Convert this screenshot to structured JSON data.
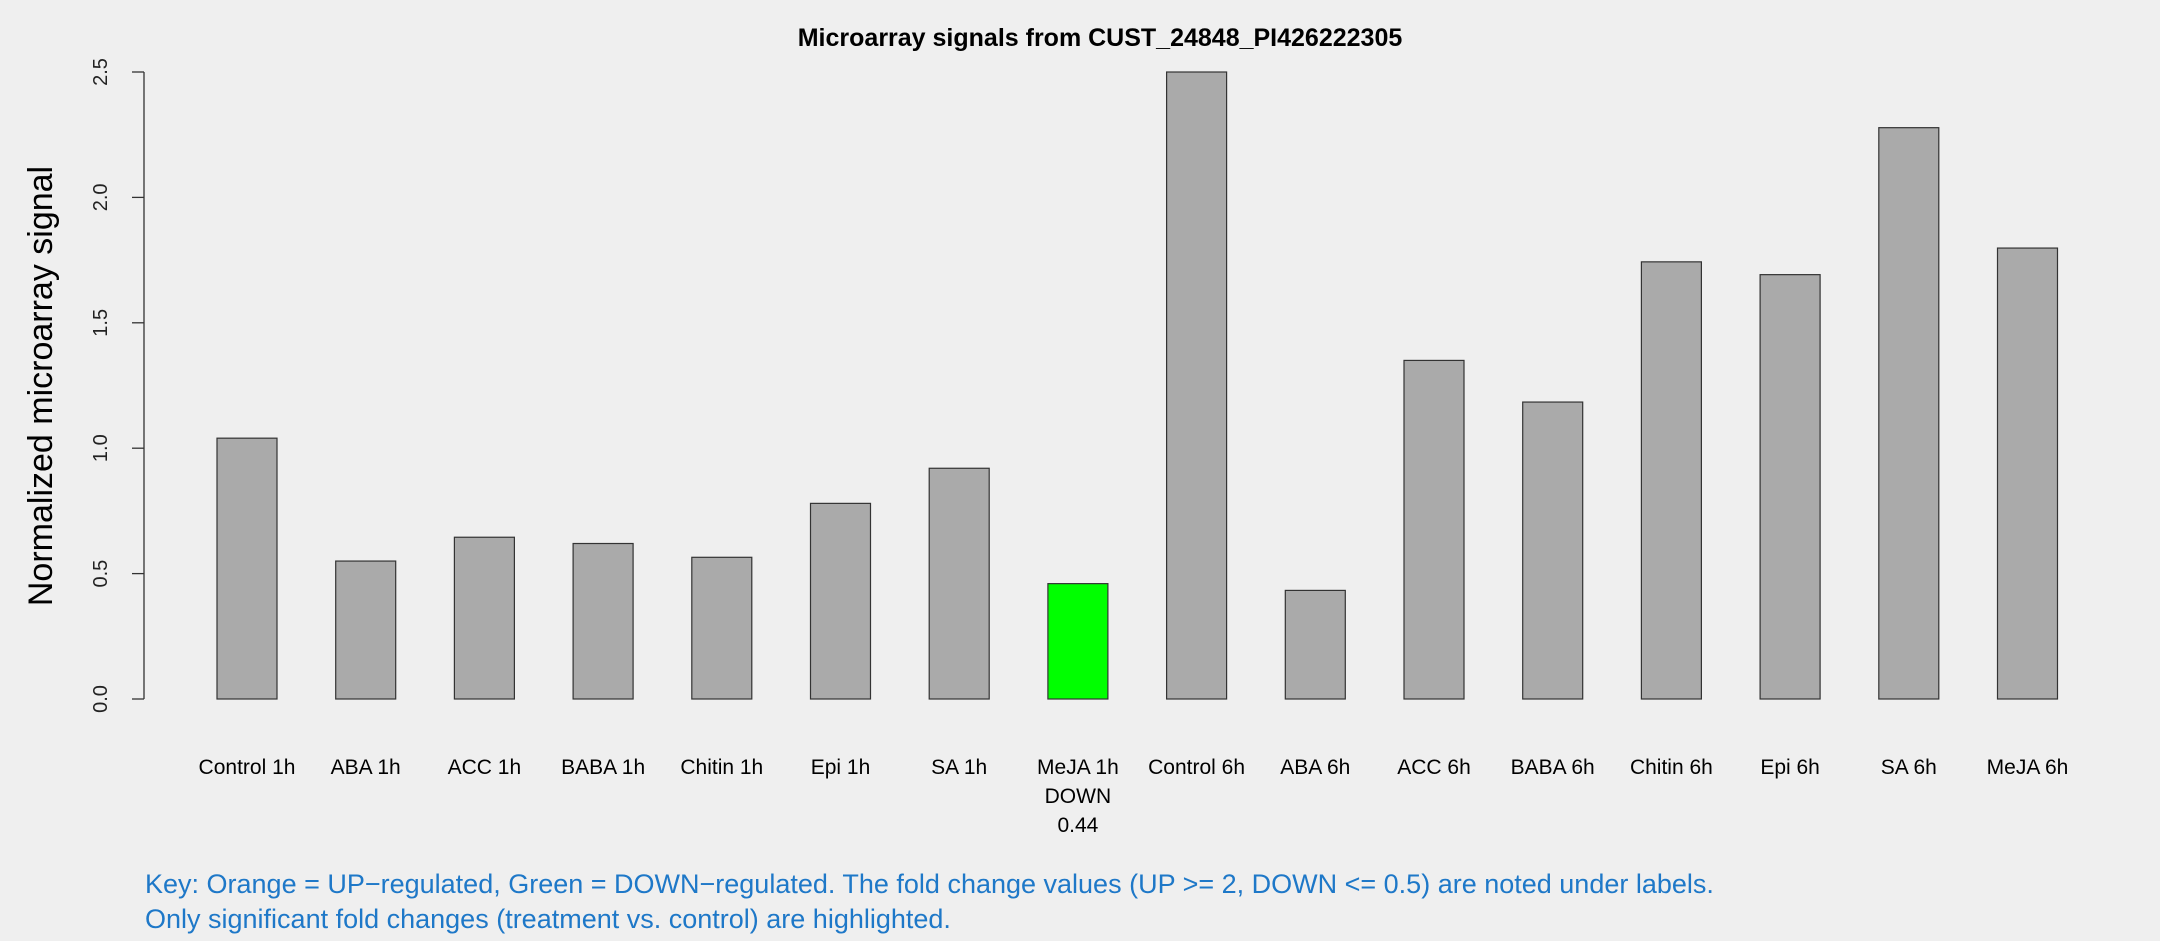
{
  "chart_data": {
    "type": "bar",
    "title": "Microarray signals from CUST_24848_PI426222305",
    "xlabel": "",
    "ylabel": "Normalized microarray signal",
    "ylim": [
      0,
      2.5
    ],
    "yticks": [
      "0.0",
      "0.5",
      "1.0",
      "1.5",
      "2.0",
      "2.5"
    ],
    "grid": false,
    "categories": [
      "Control 1h",
      "ABA 1h",
      "ACC 1h",
      "BABA 1h",
      "Chitin 1h",
      "Epi 1h",
      "SA 1h",
      "MeJA 1h",
      "Control 6h",
      "ABA 6h",
      "ACC 6h",
      "BABA 6h",
      "Chitin 6h",
      "Epi 6h",
      "SA 6h",
      "MeJA 6h"
    ],
    "values": [
      1.04,
      0.55,
      0.645,
      0.62,
      0.565,
      0.78,
      0.92,
      0.46,
      2.5,
      0.433,
      1.35,
      1.184,
      1.743,
      1.692,
      2.278,
      1.798
    ],
    "regulation": [
      "",
      "",
      "",
      "",
      "",
      "",
      "",
      "DOWN",
      "",
      "",
      "",
      "",
      "",
      "",
      "",
      ""
    ],
    "fold_change": [
      "",
      "",
      "",
      "",
      "",
      "",
      "",
      "0.44",
      "",
      "",
      "",
      "",
      "",
      "",
      "",
      ""
    ],
    "colors": {
      "default": "#aaaaaa",
      "down": "#00ff00",
      "up": "#ffa500",
      "key_text": "#1e78c8"
    }
  },
  "key": {
    "line1": "Key: Orange = UP−regulated, Green = DOWN−regulated. The fold change values (UP >= 2, DOWN <= 0.5) are noted under labels.",
    "line2": "Only significant fold changes (treatment vs. control) are highlighted."
  }
}
